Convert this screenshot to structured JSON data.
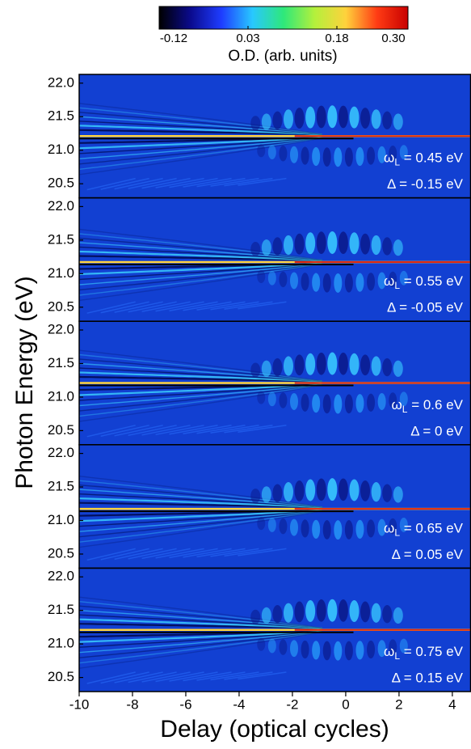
{
  "chart_data": {
    "type": "heatmap",
    "xlabel": "Delay (optical cycles)",
    "ylabel": "Photon Energy (eV)",
    "xlim": [
      -10,
      4.7
    ],
    "xticks": [
      -10,
      -8,
      -6,
      -4,
      -2,
      0,
      2,
      4
    ],
    "ylim": [
      20.29,
      22.13
    ],
    "yticks": [
      {
        "value": 22,
        "label": "22.0"
      },
      21.5,
      {
        "value": 21,
        "label": "21.0"
      },
      20.5
    ],
    "colorbar": {
      "title": "O.D. (arb. units)",
      "clim": [
        -0.12,
        0.3
      ],
      "ticks": [
        -0.12,
        0.03,
        0.18,
        {
          "value": 0.3,
          "label": "0.30"
        }
      ],
      "colormap": [
        "#000000",
        "#0a0a8c",
        "#1e3cff",
        "#28c8ff",
        "#2ee87a",
        "#b4f03c",
        "#ffd23c",
        "#ff3c14",
        "#c80000"
      ]
    },
    "panels": [
      {
        "omega_label": {
          "symbol": "ω",
          "sub": "L",
          "rest": " = 0.45 eV"
        },
        "delta_label": "Δ = -0.15 eV"
      },
      {
        "omega_label": {
          "symbol": "ω",
          "sub": "L",
          "rest": " = 0.55 eV"
        },
        "delta_label": "Δ = -0.05 eV"
      },
      {
        "omega_label": {
          "symbol": "ω",
          "sub": "L",
          "rest": " = 0.6 eV"
        },
        "delta_label": "Δ = 0 eV"
      },
      {
        "omega_label": {
          "symbol": "ω",
          "sub": "L",
          "rest": " = 0.65 eV"
        },
        "delta_label": "Δ = 0.05 eV"
      },
      {
        "omega_label": {
          "symbol": "ω",
          "sub": "L",
          "rest": " = 0.75 eV"
        },
        "delta_label": "Δ = 0.15 eV"
      }
    ]
  }
}
